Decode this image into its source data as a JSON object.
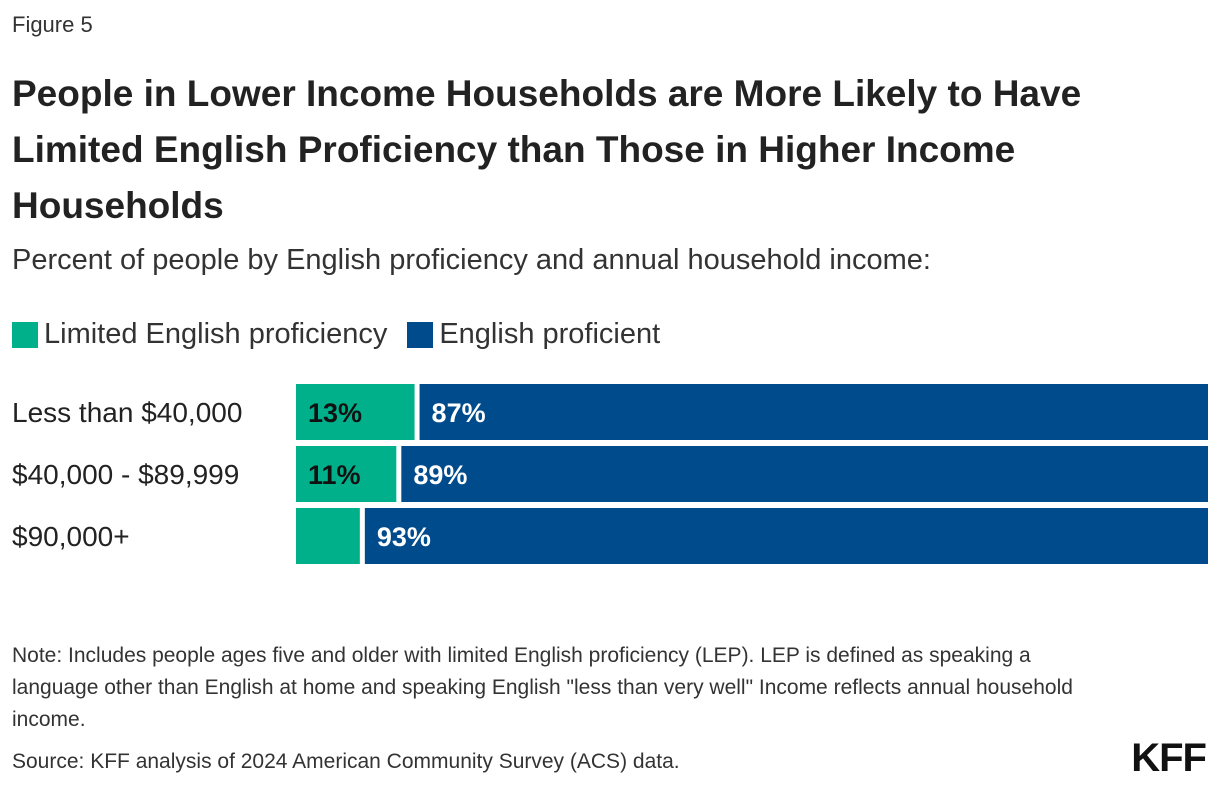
{
  "figure_label": "Figure 5",
  "title": "People in Lower Income Households are More Likely to Have Limited English Proficiency than Those in Higher Income Households",
  "subtitle": "Percent of people by English proficiency and annual household income:",
  "note": "Note: Includes people ages five and older with limited English proficiency (LEP). LEP is defined as speaking a language other than English at home and speaking English \"less than very well\" Income reflects annual household income.",
  "source": "Source: KFF analysis of 2024 American Community Survey (ACS) data.",
  "logo_text": "KFF",
  "colors": {
    "lep": "#00b08b",
    "proficient": "#004b8c",
    "lep_label": "#111111",
    "proficient_label": "#ffffff"
  },
  "chart_data": {
    "type": "bar",
    "orientation": "horizontal",
    "stacked": true,
    "categories": [
      "Less than $40,000",
      "$40,000 - $89,999",
      "$90,000+"
    ],
    "series": [
      {
        "name": "Limited English proficiency",
        "values": [
          13,
          11,
          7
        ],
        "labels": [
          "13%",
          "11%",
          ""
        ]
      },
      {
        "name": "English proficient",
        "values": [
          87,
          89,
          93
        ],
        "labels": [
          "87%",
          "89%",
          "93%"
        ]
      }
    ],
    "xlim": [
      0,
      100
    ],
    "legend_position": "top-left",
    "grid": false
  }
}
